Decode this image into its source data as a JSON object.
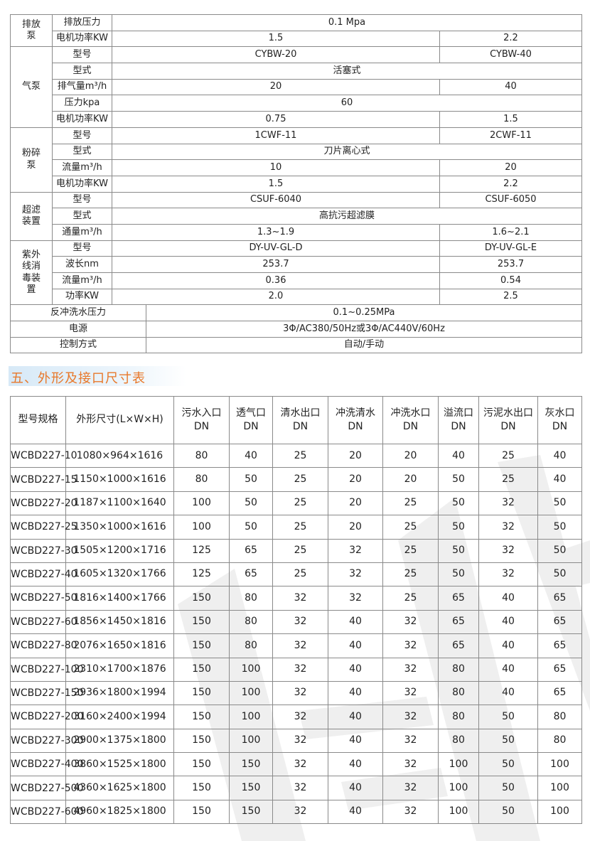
{
  "spec_table": {
    "rows": [
      {
        "group": "排放泵",
        "group_rows": 2,
        "label": "排放压力",
        "span": "0.1 Mpa"
      },
      {
        "label": "电机功率KW",
        "v1": "1.5",
        "v2": "2.2"
      },
      {
        "group": "气泵",
        "group_rows": 5,
        "label": "型号",
        "v1": "CYBW-20",
        "v2": "CYBW-40"
      },
      {
        "label": "型式",
        "span": "活塞式"
      },
      {
        "label": "排气量m³/h",
        "v1": "20",
        "v2": "40"
      },
      {
        "label": "压力kpa",
        "span": "60"
      },
      {
        "label": "电机功率KW",
        "v1": "0.75",
        "v2": "1.5"
      },
      {
        "group": "粉碎泵",
        "group_rows": 4,
        "label": "型号",
        "v1": "1CWF-11",
        "v2": "2CWF-11"
      },
      {
        "label": "型式",
        "span": "刀片离心式"
      },
      {
        "label": "流量m³/h",
        "v1": "10",
        "v2": "20"
      },
      {
        "label": "电机功率KW",
        "v1": "1.5",
        "v2": "2.2"
      },
      {
        "group": "超滤装置",
        "group_rows": 3,
        "label": "型号",
        "v1": "CSUF-6040",
        "v2": "CSUF-6050"
      },
      {
        "label": "型式",
        "span": "高抗污超滤膜"
      },
      {
        "label": "通量m³/h",
        "v1": "1.3~1.9",
        "v2": "1.6~2.1"
      },
      {
        "group": "紫外线消毒装置",
        "group_rows": 4,
        "label": "型号",
        "v1": "DY-UV-GL-D",
        "v2": "DY-UV-GL-E"
      },
      {
        "label": "波长nm",
        "v1": "253.7",
        "v2": "253.7"
      },
      {
        "label": "流量m³/h",
        "v1": "0.36",
        "v2": "0.54"
      },
      {
        "label": "功率KW",
        "v1": "2.0",
        "v2": "2.5"
      },
      {
        "wide_label": "反冲洗水压力",
        "wide_value": "0.1~0.25MPa"
      },
      {
        "wide_label": "电源",
        "wide_value": "3Φ/AC380/50Hz或3Φ/AC440V/60Hz"
      },
      {
        "wide_label": "控制方式",
        "wide_value": "自动/手动"
      }
    ]
  },
  "section_title": "五、外形及接口尺寸表",
  "dim_table": {
    "headers": [
      [
        "型号规格"
      ],
      [
        "外形尺寸(L×W×H)"
      ],
      [
        "污水入口",
        "DN"
      ],
      [
        "透气口",
        "DN"
      ],
      [
        "清水出口",
        "DN"
      ],
      [
        "冲洗清水",
        "DN"
      ],
      [
        "冲洗水口",
        "DN"
      ],
      [
        "溢流口",
        "DN"
      ],
      [
        "污泥水出口",
        "DN"
      ],
      [
        "灰水口",
        "DN"
      ]
    ],
    "rows": [
      [
        "WCBD227-10",
        "1080×964×1616",
        "80",
        "40",
        "25",
        "20",
        "20",
        "40",
        "25",
        "40"
      ],
      [
        "WCBD227-15",
        "1150×1000×1616",
        "80",
        "50",
        "25",
        "20",
        "20",
        "50",
        "25",
        "40"
      ],
      [
        "WCBD227-20",
        "1187×1100×1640",
        "100",
        "50",
        "25",
        "20",
        "25",
        "50",
        "32",
        "50"
      ],
      [
        "WCBD227-25",
        "1350×1000×1616",
        "100",
        "50",
        "25",
        "20",
        "25",
        "50",
        "32",
        "50"
      ],
      [
        "WCBD227-30",
        "1505×1200×1716",
        "125",
        "65",
        "25",
        "32",
        "25",
        "50",
        "32",
        "50"
      ],
      [
        "WCBD227-40",
        "1605×1320×1766",
        "125",
        "65",
        "25",
        "32",
        "25",
        "50",
        "32",
        "50"
      ],
      [
        "WCBD227-50",
        "1816×1400×1766",
        "150",
        "80",
        "32",
        "32",
        "25",
        "65",
        "40",
        "65"
      ],
      [
        "WCBD227-60",
        "1856×1450×1816",
        "150",
        "80",
        "32",
        "40",
        "32",
        "65",
        "40",
        "65"
      ],
      [
        "WCBD227-80",
        "2076×1650×1816",
        "150",
        "80",
        "32",
        "40",
        "32",
        "65",
        "40",
        "65"
      ],
      [
        "WCBD227-100",
        "2310×1700×1876",
        "150",
        "100",
        "32",
        "40",
        "32",
        "80",
        "40",
        "65"
      ],
      [
        "WCBD227-150",
        "2936×1800×1994",
        "150",
        "100",
        "32",
        "40",
        "32",
        "80",
        "40",
        "65"
      ],
      [
        "WCBD227-200",
        "3160×2400×1994",
        "150",
        "100",
        "32",
        "40",
        "32",
        "80",
        "50",
        "80"
      ],
      [
        "WCBD227-300",
        "2900×1375×1800",
        "150",
        "100",
        "32",
        "40",
        "32",
        "80",
        "50",
        "80"
      ],
      [
        "WCBD227-400",
        "3860×1525×1800",
        "150",
        "150",
        "32",
        "40",
        "32",
        "100",
        "50",
        "100"
      ],
      [
        "WCBD227-500",
        "4360×1625×1800",
        "150",
        "150",
        "32",
        "40",
        "32",
        "100",
        "50",
        "100"
      ],
      [
        "WCBD227-600",
        "4960×1825×1800",
        "150",
        "150",
        "32",
        "40",
        "32",
        "100",
        "50",
        "100"
      ]
    ]
  },
  "colors": {
    "title": "#e8782a",
    "title_bg": "#d7e9f7",
    "border": "#8a8a8a",
    "watermark": "#ececec"
  }
}
